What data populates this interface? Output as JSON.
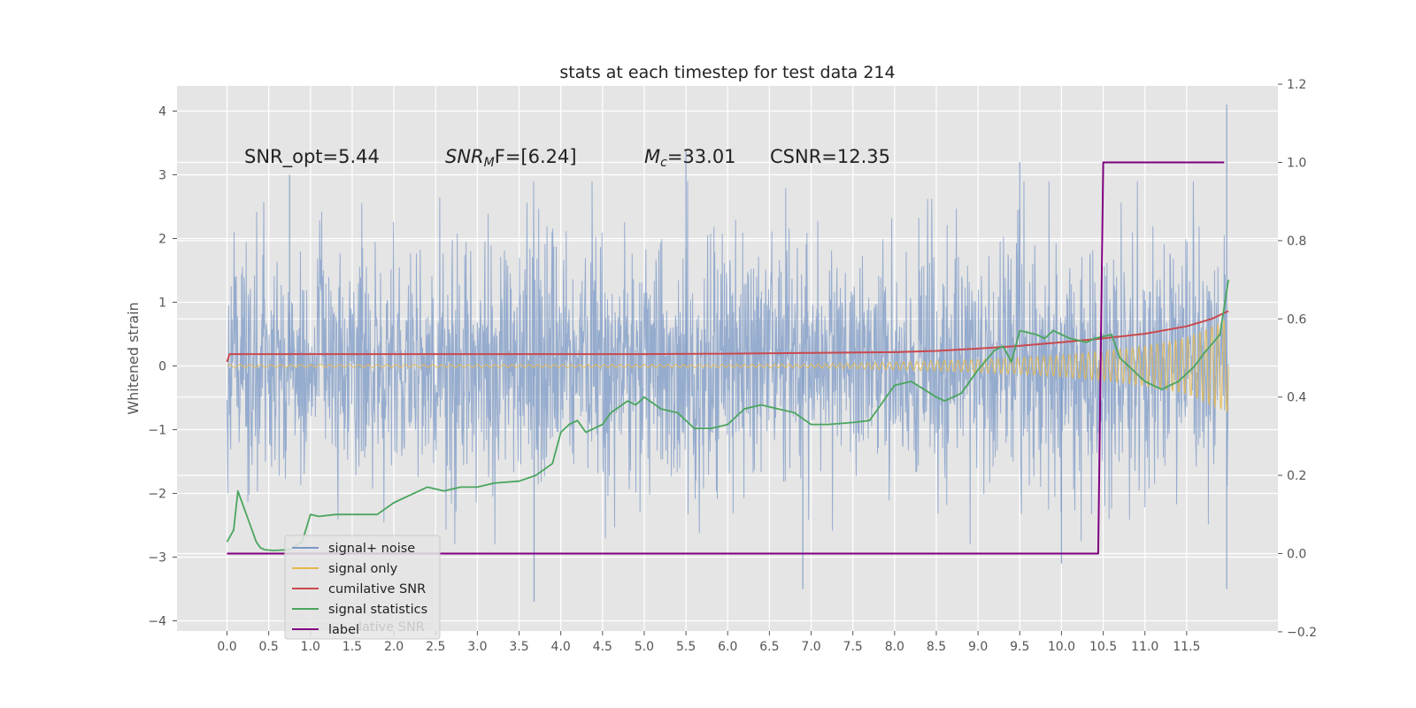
{
  "chart_data": {
    "type": "line",
    "title": "stats at each timestep for test data 214",
    "ylabel": "Whitened strain",
    "xlim": [
      -0.6,
      12.6
    ],
    "ylim": [
      -4.2,
      4.4
    ],
    "y2lim": [
      -0.2,
      1.2
    ],
    "x_ticks": [
      "0.0",
      "0.5",
      "1.0",
      "1.5",
      "2.0",
      "2.5",
      "3.0",
      "3.5",
      "4.0",
      "4.5",
      "5.0",
      "5.5",
      "6.0",
      "6.5",
      "7.0",
      "7.5",
      "8.0",
      "8.5",
      "9.0",
      "9.5",
      "10.0",
      "10.5",
      "11.0",
      "11.5"
    ],
    "y_ticks": [
      "4",
      "3",
      "2",
      "1",
      "0",
      "−1",
      "−2",
      "−3",
      "−4"
    ],
    "y2_ticks": [
      "1.2",
      "1.0",
      "0.8",
      "0.6",
      "0.4",
      "0.2",
      "0.0",
      "−0.2"
    ],
    "grid": true,
    "legend_position": "lower-left",
    "annotations": {
      "snr_opt": "SNR_opt=5.44",
      "snr_mf_base": "SNR",
      "snr_mf_sub": "M",
      "snr_mf_rest": "F=[6.24]",
      "mc_base": "M",
      "mc_sub": "c",
      "mc_rest": "=33.01",
      "csnr": "CSNR=12.35"
    },
    "colors": {
      "signal_noise": "#7b98c6",
      "signal_only": "#e6b84a",
      "cumulative_snr": "#c9494e",
      "signal_statistics": "#4aa55d",
      "label": "#800080",
      "plot_bg": "#e5e5e5"
    },
    "series": [
      {
        "name": "signal+ noise",
        "axis": "left",
        "style": "dense noise, approx. range",
        "x_range": [
          0.0,
          12.0
        ],
        "envelope_min": -3.7,
        "envelope_max": 4.1,
        "peaks": [
          [
            0.75,
            3.0
          ],
          [
            5.5,
            3.4
          ],
          [
            9.5,
            3.2
          ],
          [
            11.98,
            4.1
          ],
          [
            3.68,
            -3.7
          ],
          [
            6.9,
            -3.5
          ],
          [
            11.98,
            -3.5
          ],
          [
            10.0,
            -3.1
          ]
        ]
      },
      {
        "name": "signal only",
        "axis": "left",
        "x": [
          0.0,
          1.0,
          2.0,
          3.0,
          4.0,
          5.0,
          6.0,
          7.0,
          7.5,
          8.0,
          8.5,
          9.0,
          9.5,
          10.0,
          10.5,
          11.0,
          11.5,
          12.0
        ],
        "amplitude": [
          0.02,
          0.02,
          0.02,
          0.02,
          0.02,
          0.02,
          0.02,
          0.03,
          0.04,
          0.06,
          0.08,
          0.1,
          0.13,
          0.17,
          0.23,
          0.32,
          0.45,
          0.75
        ]
      },
      {
        "name": "cumilative SNR",
        "axis": "right",
        "x": [
          0.0,
          0.03,
          1.0,
          2.0,
          3.0,
          4.0,
          5.0,
          6.0,
          7.0,
          8.0,
          8.5,
          9.0,
          9.5,
          10.0,
          10.5,
          11.0,
          11.5,
          11.8,
          12.0
        ],
        "y": [
          0.49,
          0.51,
          0.51,
          0.51,
          0.51,
          0.51,
          0.51,
          0.511,
          0.513,
          0.515,
          0.518,
          0.524,
          0.531,
          0.54,
          0.55,
          0.562,
          0.581,
          0.6,
          0.62
        ]
      },
      {
        "name": "signal statistics",
        "axis": "right",
        "x": [
          0.0,
          0.08,
          0.13,
          0.3,
          0.35,
          0.4,
          0.45,
          0.55,
          0.75,
          0.9,
          1.0,
          1.1,
          1.3,
          1.5,
          1.8,
          2.0,
          2.2,
          2.4,
          2.6,
          2.8,
          3.0,
          3.2,
          3.5,
          3.7,
          3.9,
          4.0,
          4.1,
          4.2,
          4.3,
          4.5,
          4.6,
          4.8,
          4.9,
          5.0,
          5.2,
          5.4,
          5.6,
          5.8,
          6.0,
          6.2,
          6.4,
          6.6,
          6.8,
          7.0,
          7.2,
          7.5,
          7.7,
          7.8,
          8.0,
          8.2,
          8.5,
          8.6,
          8.8,
          9.0,
          9.2,
          9.3,
          9.4,
          9.5,
          9.7,
          9.8,
          9.9,
          10.0,
          10.1,
          10.3,
          10.4,
          10.6,
          10.7,
          10.8,
          11.0,
          11.2,
          11.4,
          11.5,
          11.6,
          11.7,
          11.9,
          12.0
        ],
        "y": [
          0.03,
          0.06,
          0.16,
          0.06,
          0.03,
          0.015,
          0.01,
          0.008,
          0.01,
          0.03,
          0.1,
          0.095,
          0.1,
          0.1,
          0.1,
          0.13,
          0.15,
          0.17,
          0.16,
          0.17,
          0.17,
          0.18,
          0.185,
          0.2,
          0.23,
          0.31,
          0.33,
          0.34,
          0.31,
          0.33,
          0.36,
          0.39,
          0.38,
          0.4,
          0.37,
          0.36,
          0.32,
          0.32,
          0.33,
          0.37,
          0.38,
          0.37,
          0.36,
          0.33,
          0.33,
          0.335,
          0.34,
          0.37,
          0.43,
          0.44,
          0.4,
          0.39,
          0.41,
          0.47,
          0.52,
          0.53,
          0.49,
          0.57,
          0.56,
          0.55,
          0.57,
          0.56,
          0.55,
          0.54,
          0.55,
          0.56,
          0.5,
          0.48,
          0.44,
          0.42,
          0.44,
          0.46,
          0.48,
          0.51,
          0.56,
          0.7
        ]
      },
      {
        "name": "label",
        "axis": "right",
        "x": [
          0.0,
          10.44,
          10.5,
          11.95
        ],
        "y": [
          0.0,
          0.0,
          1.0,
          1.0
        ]
      }
    ]
  },
  "legend": {
    "items": [
      {
        "label": "signal+ noise",
        "color": "#7b98c6"
      },
      {
        "label": "signal only",
        "color": "#e6b84a"
      },
      {
        "label": "cumilative SNR",
        "color": "#c9494e"
      },
      {
        "label": "signal statistics",
        "color": "#4aa55d"
      },
      {
        "label": "label",
        "color": "#800080"
      }
    ],
    "ghost_text": "lative SNR"
  }
}
